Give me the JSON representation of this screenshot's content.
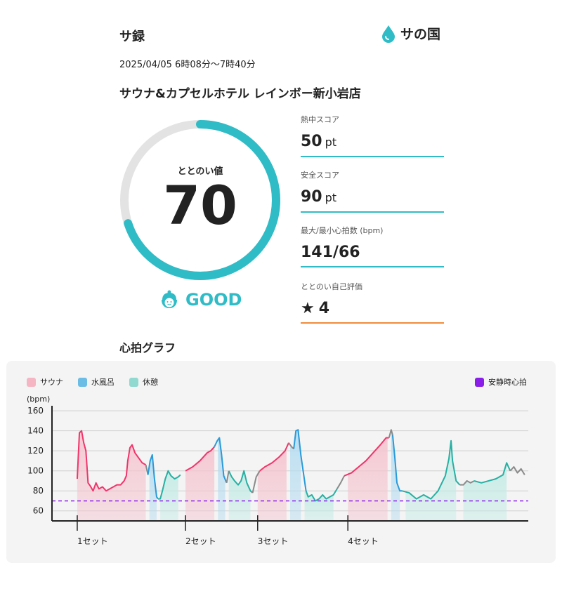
{
  "header": {
    "title": "サ録",
    "logo_text": "サの国"
  },
  "session": {
    "datetime": "2025/04/05 6時08分〜7時40分",
    "facility": "サウナ&カプセルホテル レインボー新小岩店"
  },
  "score": {
    "label": "ととのい値",
    "value": "70",
    "max": 100,
    "grade": "GOOD"
  },
  "metrics": [
    {
      "label": "熱中スコア",
      "value": "50",
      "unit": "pt"
    },
    {
      "label": "安全スコア",
      "value": "90",
      "unit": "pt"
    },
    {
      "label": "最大/最小心拍数 (bpm)",
      "value": "141/66",
      "unit": ""
    },
    {
      "label": "ととのい自己評価",
      "value": "4",
      "unit": ""
    }
  ],
  "graph_title": "心拍グラフ",
  "colors": {
    "accent": "#2fbcc6",
    "sauna": "#f0356a",
    "water": "#2a9ad8",
    "rest": "#27b0a3",
    "other": "#8a8a8a",
    "resting_hr": "#8a1ee8",
    "self_eval_line": "#f08a3a"
  },
  "chart_data": {
    "type": "line",
    "ylabel": "(bpm)",
    "ylim": [
      50,
      165
    ],
    "yticks": [
      60,
      80,
      100,
      120,
      140,
      160
    ],
    "set_labels": [
      "1セット",
      "2セット",
      "3セット",
      "4セット"
    ],
    "set_starts": [
      0,
      15,
      25,
      37.5
    ],
    "xlim": [
      -3.5,
      62.5
    ],
    "legend": [
      "サウナ",
      "水風呂",
      "休憩"
    ],
    "legend_right": "安静時心拍",
    "resting_hr": 70,
    "phases": [
      {
        "name": "サウナ",
        "kind": "sauna",
        "start": 0,
        "end": 9.5
      },
      {
        "name": "水風呂",
        "kind": "water",
        "start": 10,
        "end": 11
      },
      {
        "name": "休憩",
        "kind": "rest",
        "start": 11.5,
        "end": 14
      },
      {
        "name": "サウナ",
        "kind": "sauna",
        "start": 15,
        "end": 19
      },
      {
        "name": "水風呂",
        "kind": "water",
        "start": 19.5,
        "end": 20.5
      },
      {
        "name": "休憩",
        "kind": "rest",
        "start": 21,
        "end": 24
      },
      {
        "name": "サウナ",
        "kind": "sauna",
        "start": 25,
        "end": 29
      },
      {
        "name": "水風呂",
        "kind": "water",
        "start": 29.5,
        "end": 31
      },
      {
        "name": "休憩",
        "kind": "rest",
        "start": 31.5,
        "end": 35.5
      },
      {
        "name": "サウナ",
        "kind": "sauna",
        "start": 37.5,
        "end": 43
      },
      {
        "name": "水風呂",
        "kind": "water",
        "start": 43.5,
        "end": 44.7
      },
      {
        "name": "休憩",
        "kind": "rest",
        "start": 45.5,
        "end": 52.5
      },
      {
        "name": "休憩",
        "kind": "rest",
        "start": 53.5,
        "end": 59.5
      }
    ],
    "series": [
      {
        "kind": "sauna",
        "points": [
          [
            0,
            92
          ],
          [
            0.3,
            138
          ],
          [
            0.6,
            140
          ],
          [
            0.9,
            128
          ],
          [
            1.2,
            120
          ],
          [
            1.5,
            88
          ],
          [
            1.8,
            85
          ],
          [
            2.2,
            80
          ],
          [
            2.6,
            88
          ],
          [
            3,
            82
          ],
          [
            3.5,
            84
          ],
          [
            4,
            80
          ],
          [
            4.5,
            82
          ],
          [
            5,
            84
          ],
          [
            5.5,
            86
          ],
          [
            6,
            86
          ],
          [
            6.5,
            90
          ],
          [
            6.8,
            95
          ],
          [
            7,
            110
          ],
          [
            7.3,
            123
          ],
          [
            7.6,
            126
          ],
          [
            8,
            118
          ],
          [
            8.5,
            113
          ],
          [
            9,
            108
          ],
          [
            9.5,
            106
          ]
        ]
      },
      {
        "kind": "other",
        "points": [
          [
            9.5,
            106
          ],
          [
            9.8,
            96
          ]
        ]
      },
      {
        "kind": "water",
        "points": [
          [
            9.8,
            96
          ],
          [
            10.1,
            110
          ],
          [
            10.4,
            116
          ],
          [
            10.7,
            92
          ],
          [
            11,
            74
          ],
          [
            11.2,
            72
          ]
        ]
      },
      {
        "kind": "rest",
        "points": [
          [
            11.2,
            72
          ],
          [
            11.5,
            72
          ],
          [
            11.8,
            80
          ],
          [
            12.2,
            92
          ],
          [
            12.6,
            100
          ],
          [
            13,
            95
          ],
          [
            13.5,
            92
          ],
          [
            14,
            94
          ],
          [
            14.3,
            96
          ]
        ]
      },
      {
        "kind": "sauna",
        "points": [
          [
            15,
            100
          ],
          [
            16,
            104
          ],
          [
            17,
            110
          ],
          [
            18,
            118
          ],
          [
            18.5,
            120
          ],
          [
            19,
            124
          ]
        ]
      },
      {
        "kind": "water",
        "points": [
          [
            19,
            124
          ],
          [
            19.4,
            130
          ],
          [
            19.7,
            133
          ],
          [
            20,
            116
          ],
          [
            20.3,
            95
          ],
          [
            20.7,
            88
          ]
        ]
      },
      {
        "kind": "other",
        "points": [
          [
            20.7,
            88
          ],
          [
            21,
            100
          ]
        ]
      },
      {
        "kind": "rest",
        "points": [
          [
            21,
            100
          ],
          [
            21.4,
            94
          ],
          [
            21.8,
            90
          ],
          [
            22.3,
            86
          ],
          [
            22.7,
            90
          ],
          [
            23.1,
            100
          ],
          [
            23.5,
            88
          ],
          [
            24,
            80
          ],
          [
            24.3,
            78
          ]
        ]
      },
      {
        "kind": "other",
        "points": [
          [
            24.3,
            78
          ],
          [
            24.8,
            94
          ],
          [
            25.3,
            100
          ]
        ]
      },
      {
        "kind": "sauna",
        "points": [
          [
            25.3,
            100
          ],
          [
            26,
            104
          ],
          [
            27,
            108
          ],
          [
            28,
            114
          ],
          [
            28.8,
            120
          ],
          [
            29.3,
            128
          ]
        ]
      },
      {
        "kind": "other",
        "points": [
          [
            29.3,
            128
          ],
          [
            29.7,
            124
          ],
          [
            30,
            122
          ]
        ]
      },
      {
        "kind": "water",
        "points": [
          [
            30,
            122
          ],
          [
            30.3,
            140
          ],
          [
            30.6,
            141
          ],
          [
            31,
            115
          ],
          [
            31.4,
            95
          ],
          [
            31.7,
            80
          ]
        ]
      },
      {
        "kind": "rest",
        "points": [
          [
            31.7,
            80
          ],
          [
            32,
            74
          ],
          [
            32.5,
            76
          ],
          [
            33,
            70
          ],
          [
            33.5,
            72
          ],
          [
            34,
            76
          ],
          [
            34.5,
            72
          ],
          [
            35,
            74
          ],
          [
            35.5,
            76
          ],
          [
            36,
            82
          ]
        ]
      },
      {
        "kind": "other",
        "points": [
          [
            36,
            82
          ],
          [
            36.5,
            88
          ],
          [
            37,
            95
          ]
        ]
      },
      {
        "kind": "sauna",
        "points": [
          [
            37,
            95
          ],
          [
            38,
            98
          ],
          [
            39,
            104
          ],
          [
            40,
            110
          ],
          [
            41,
            118
          ],
          [
            42,
            126
          ],
          [
            42.8,
            133
          ],
          [
            43.2,
            133
          ]
        ]
      },
      {
        "kind": "other",
        "points": [
          [
            43.2,
            133
          ],
          [
            43.5,
            141
          ],
          [
            43.7,
            136
          ]
        ]
      },
      {
        "kind": "water",
        "points": [
          [
            43.7,
            136
          ],
          [
            44,
            114
          ],
          [
            44.3,
            88
          ],
          [
            44.7,
            80
          ],
          [
            45,
            80
          ]
        ]
      },
      {
        "kind": "rest",
        "points": [
          [
            45,
            80
          ],
          [
            46,
            78
          ],
          [
            47,
            72
          ],
          [
            48,
            76
          ],
          [
            49,
            72
          ],
          [
            50,
            80
          ],
          [
            51,
            95
          ],
          [
            51.5,
            112
          ],
          [
            51.8,
            130
          ],
          [
            52,
            110
          ],
          [
            52.5,
            90
          ],
          [
            53,
            86
          ]
        ]
      },
      {
        "kind": "other",
        "points": [
          [
            53,
            86
          ],
          [
            53.5,
            86
          ],
          [
            54,
            90
          ],
          [
            54.5,
            88
          ],
          [
            55,
            90
          ]
        ]
      },
      {
        "kind": "rest",
        "points": [
          [
            55,
            90
          ],
          [
            56,
            88
          ],
          [
            57,
            90
          ],
          [
            58,
            92
          ],
          [
            59,
            96
          ],
          [
            59.5,
            108
          ],
          [
            60,
            100
          ]
        ]
      },
      {
        "kind": "other",
        "points": [
          [
            60,
            100
          ],
          [
            60.5,
            104
          ],
          [
            61,
            98
          ],
          [
            61.5,
            102
          ],
          [
            62,
            96
          ]
        ]
      }
    ]
  }
}
